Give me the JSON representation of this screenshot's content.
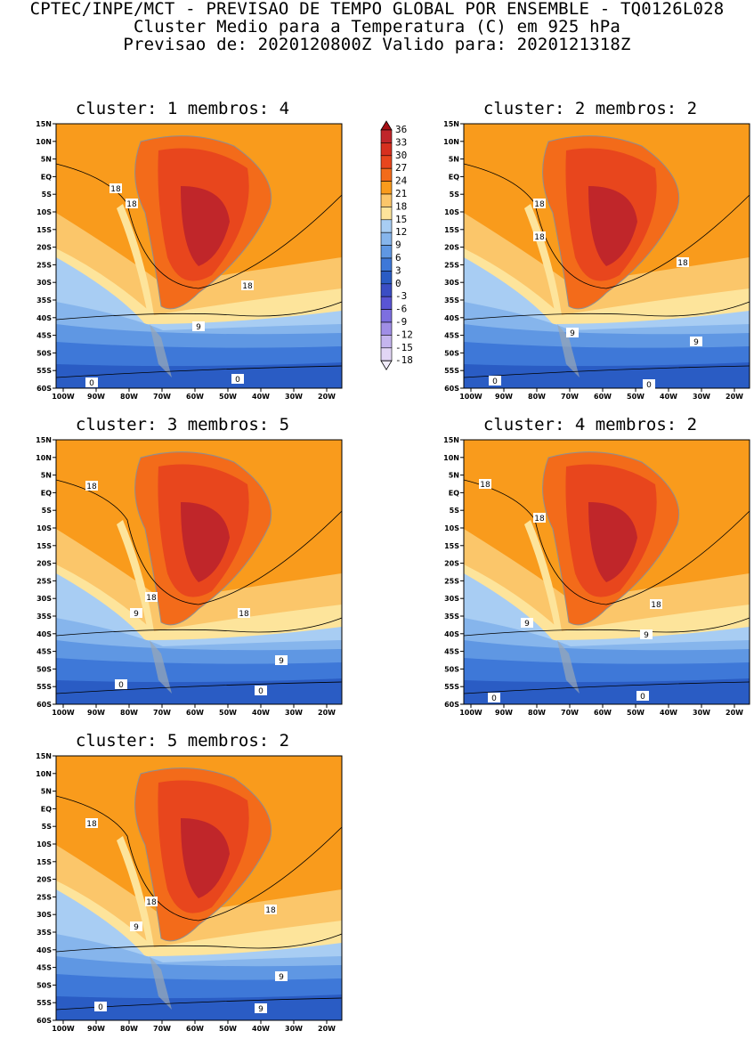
{
  "header": {
    "line1": "CPTEC/INPE/MCT - PREVISAO DE TEMPO GLOBAL POR ENSEMBLE - TQ0126L028",
    "line2": "Cluster Medio para a Temperatura (C) em 925 hPa",
    "line3": "Previsao de: 2020120800Z   Valido para: 2020121318Z"
  },
  "lat_labels": [
    "15N",
    "10N",
    "5N",
    "EQ",
    "5S",
    "10S",
    "15S",
    "20S",
    "25S",
    "30S",
    "35S",
    "40S",
    "45S",
    "50S",
    "55S",
    "60S"
  ],
  "lon_labels": [
    "100W",
    "90W",
    "80W",
    "70W",
    "60W",
    "50W",
    "40W",
    "30W",
    "20W"
  ],
  "panels": [
    {
      "title": "cluster: 1   membros: 4",
      "contour_labels": [
        "18",
        "18",
        "18",
        "9",
        "0",
        "0"
      ]
    },
    {
      "title": "cluster: 2   membros: 2",
      "contour_labels": [
        "18",
        "18",
        "18",
        "9",
        "9",
        "0",
        "0"
      ]
    },
    {
      "title": "cluster: 3   membros: 5",
      "contour_labels": [
        "18",
        "18",
        "18",
        "9",
        "9",
        "0",
        "0"
      ]
    },
    {
      "title": "cluster: 4   membros: 2",
      "contour_labels": [
        "18",
        "18",
        "18",
        "9",
        "9",
        "0",
        "0"
      ]
    },
    {
      "title": "cluster: 5   membros: 2",
      "contour_labels": [
        "18",
        "18",
        "18",
        "9",
        "9",
        "0",
        "9"
      ]
    }
  ],
  "legend": {
    "levels": [
      "36",
      "33",
      "30",
      "27",
      "24",
      "21",
      "18",
      "15",
      "12",
      "9",
      "6",
      "3",
      "0",
      "-3",
      "-6",
      "-9",
      "-12",
      "-15",
      "-18"
    ],
    "colors": [
      "#a50f15",
      "#c0262a",
      "#d7301f",
      "#e8461d",
      "#f36b1a",
      "#f99b1c",
      "#fbc66a",
      "#fde49b",
      "#a8cdf3",
      "#86b5ec",
      "#5f97e3",
      "#3e78d8",
      "#2a5cc4",
      "#3b4ec4",
      "#5a55d4",
      "#7d6fe0",
      "#a08ee6",
      "#c5b5ee",
      "#e2d6f5",
      "#f1ecfb"
    ]
  }
}
